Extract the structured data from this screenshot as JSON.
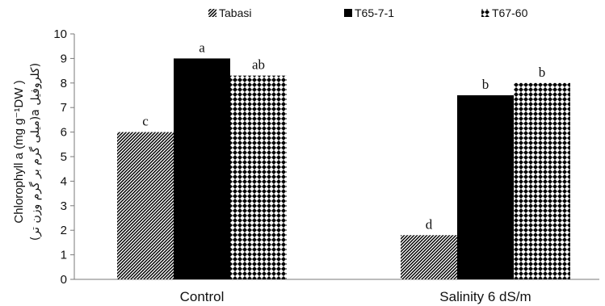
{
  "chart_data": {
    "type": "bar",
    "ylabel": "Chlorophyll a (mg g⁻¹DW )",
    "ylabel_alt": "(کلروفیل a(میلی گرم بر گرم وزن تر)",
    "ylim": [
      0,
      10
    ],
    "yticks": [
      "0",
      "1",
      "2",
      "3",
      "4",
      "5",
      "6",
      "7",
      "8",
      "9",
      "10"
    ],
    "categories": [
      "Control",
      "Salinity 6 dS/m"
    ],
    "series": [
      {
        "name": "Tabasi",
        "values": [
          6.0,
          1.8
        ],
        "letters": [
          "c",
          "d"
        ],
        "pattern": "diagonal-hatch"
      },
      {
        "name": "T65-7-1",
        "values": [
          9.0,
          7.5
        ],
        "letters": [
          "a",
          "b"
        ],
        "pattern": "solid"
      },
      {
        "name": "T67-60",
        "values": [
          8.3,
          8.0
        ],
        "letters": [
          "ab",
          "b"
        ],
        "pattern": "dots"
      }
    ],
    "legend_position": "top",
    "grid": false,
    "colors": {
      "bar": "#000000",
      "background": "#ffffff",
      "text": "#111111"
    }
  }
}
